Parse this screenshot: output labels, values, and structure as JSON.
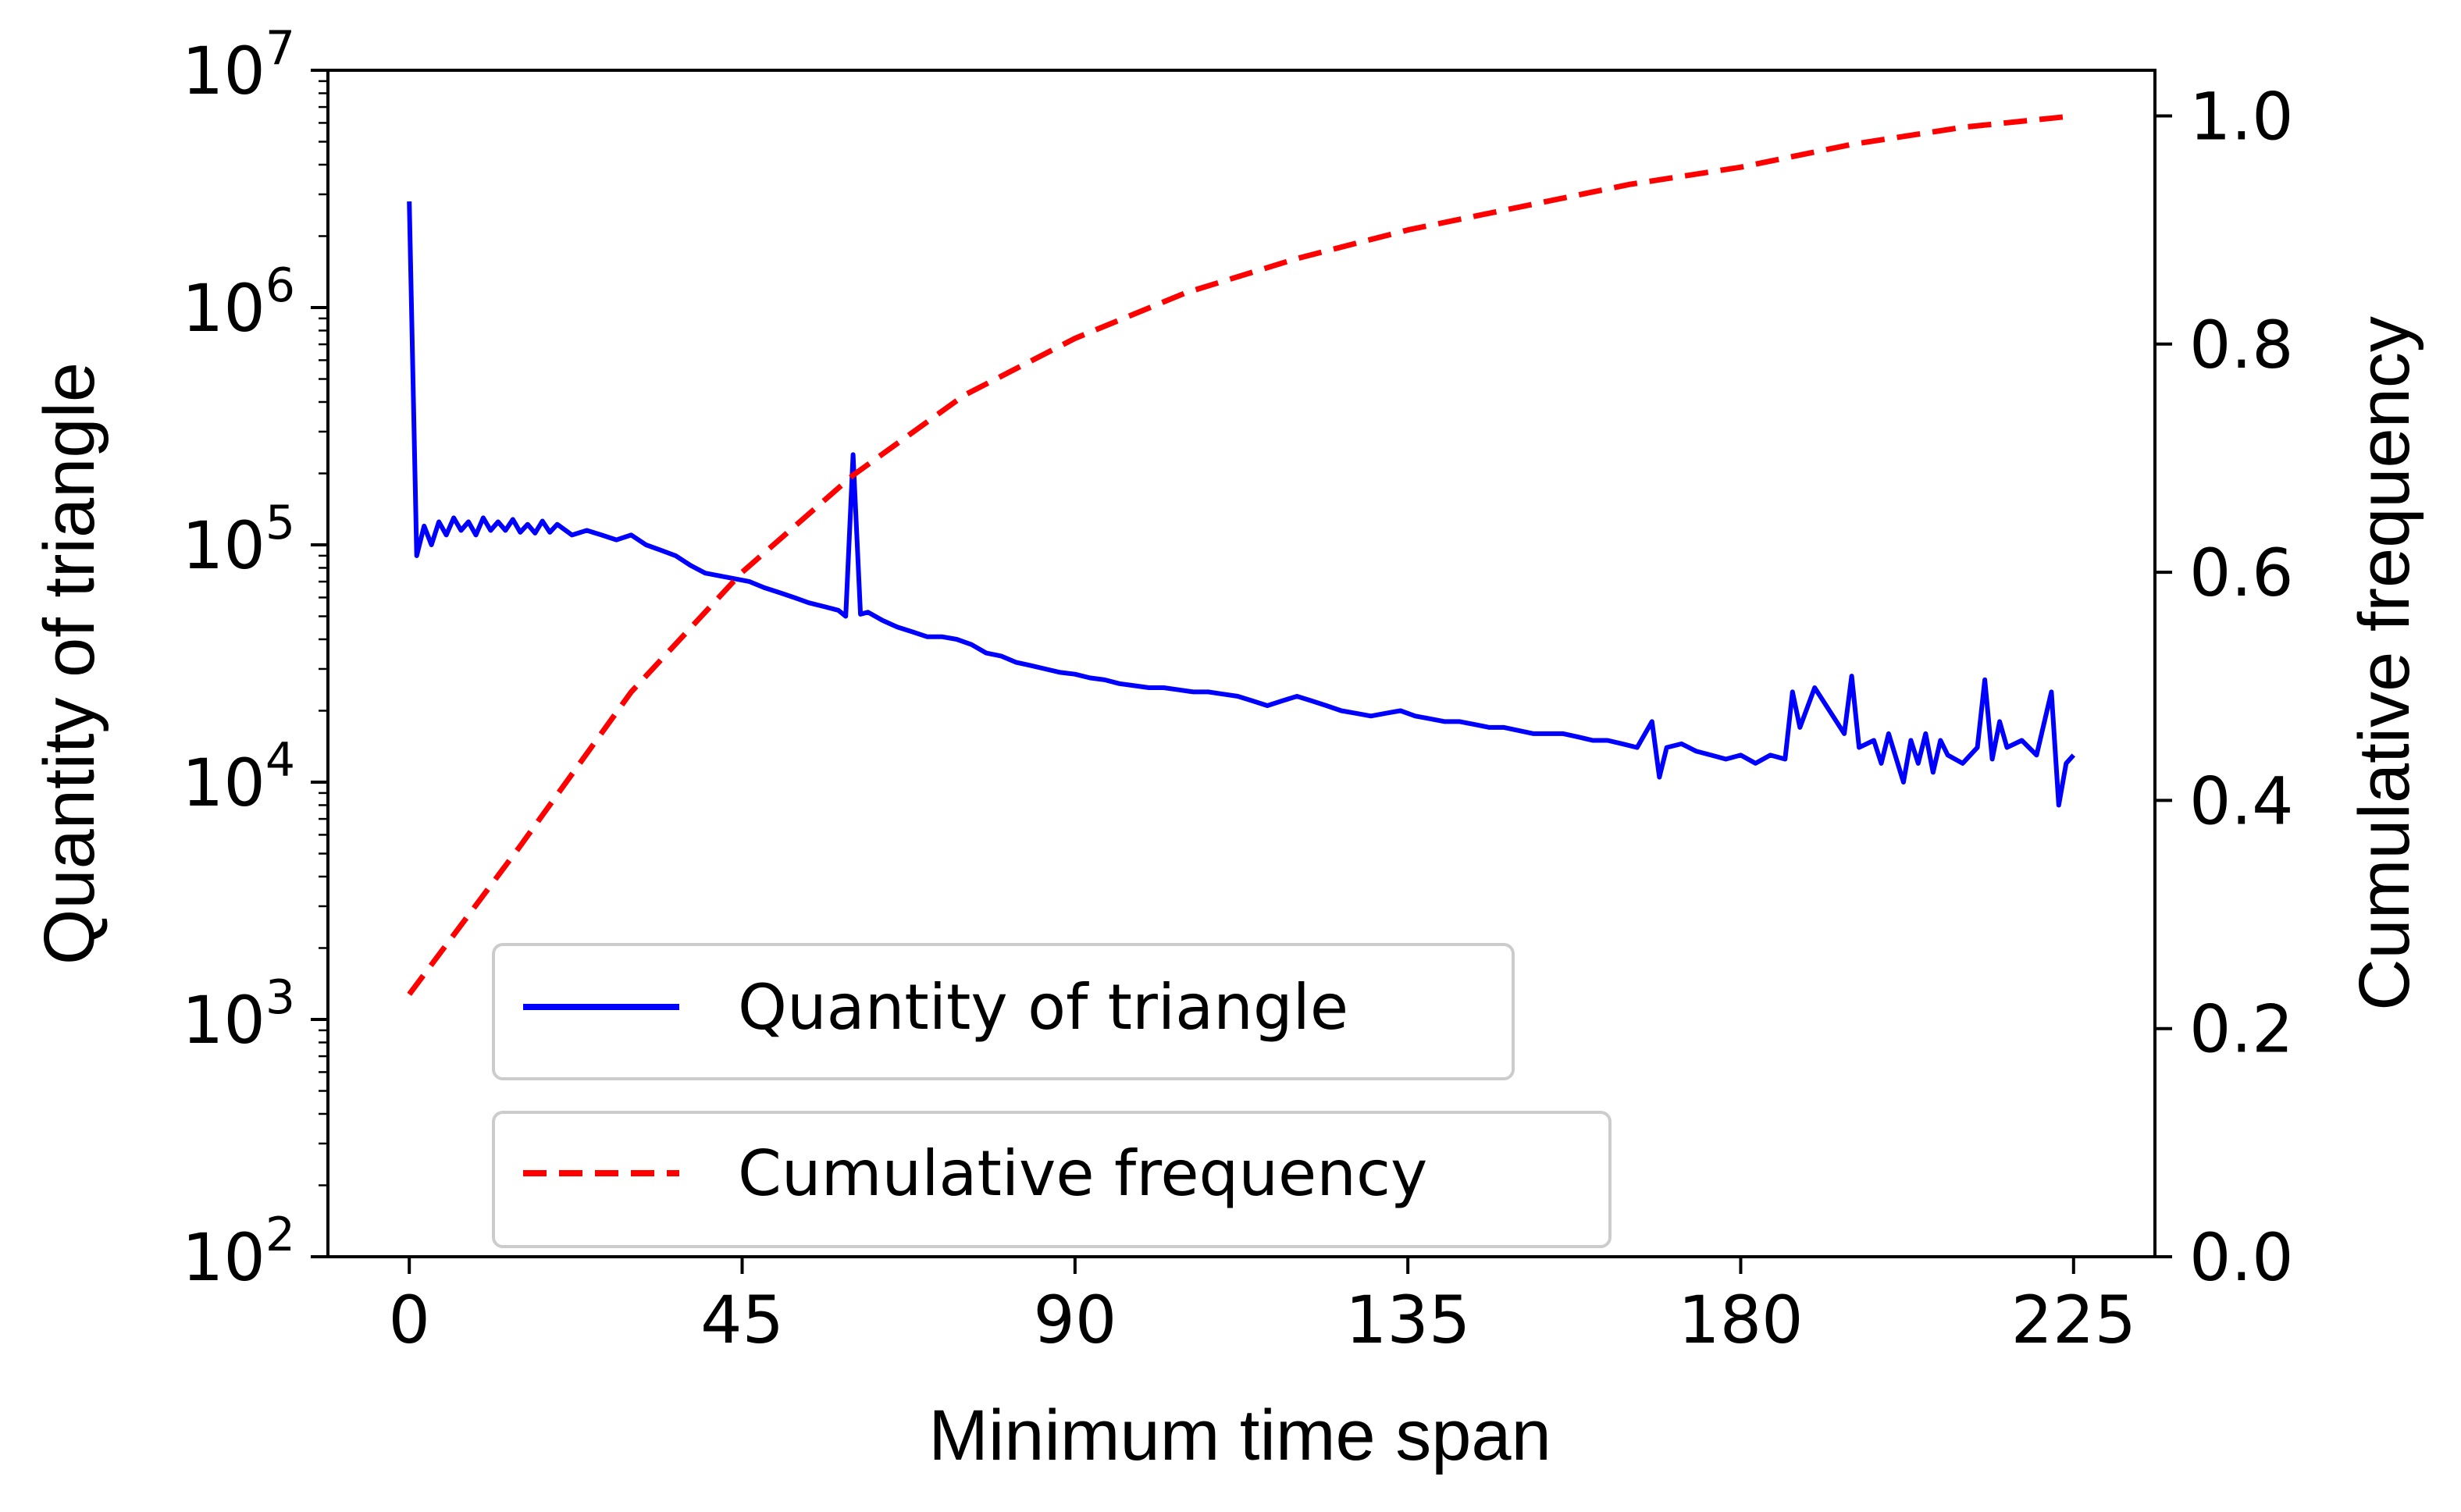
{
  "chart_data": {
    "type": "line",
    "xlabel": "Minimum time span",
    "ylabel_left": "Quantity of triangle",
    "ylabel_right": "Cumulative frequency",
    "xlim": [
      -11,
      236
    ],
    "ylim_left": [
      100,
      10000000
    ],
    "ylim_right": [
      0.0,
      1.04
    ],
    "y_left_scale": "log",
    "x_ticks": [
      "0",
      "45",
      "90",
      "135",
      "180",
      "225"
    ],
    "y_left_ticks": [
      "10^2",
      "10^3",
      "10^4",
      "10^5",
      "10^6",
      "10^7"
    ],
    "y_right_ticks": [
      "0.0",
      "0.2",
      "0.4",
      "0.6",
      "0.8",
      "1.0"
    ],
    "grid": false,
    "legend": {
      "position": "lower-left",
      "entries": [
        {
          "label": "Quantity of triangle",
          "color": "#0000ff",
          "style": "solid"
        },
        {
          "label": "Cumulative frequency",
          "color": "#ff0000",
          "style": "dashed"
        }
      ]
    },
    "series": [
      {
        "name": "Quantity of triangle",
        "axis": "left",
        "color": "#0000ff",
        "x": [
          0,
          1,
          2,
          3,
          4,
          5,
          6,
          7,
          8,
          9,
          10,
          11,
          12,
          13,
          14,
          15,
          16,
          17,
          18,
          19,
          20,
          22,
          24,
          26,
          28,
          30,
          32,
          34,
          36,
          38,
          40,
          42,
          44,
          46,
          48,
          50,
          52,
          54,
          56,
          58,
          59,
          60,
          61,
          62,
          64,
          66,
          68,
          70,
          72,
          74,
          76,
          78,
          80,
          82,
          84,
          86,
          88,
          90,
          92,
          94,
          96,
          98,
          100,
          102,
          104,
          106,
          108,
          110,
          112,
          114,
          116,
          118,
          120,
          122,
          124,
          126,
          128,
          130,
          132,
          134,
          136,
          138,
          140,
          142,
          144,
          146,
          148,
          150,
          152,
          154,
          156,
          158,
          160,
          162,
          164,
          166,
          168,
          169,
          170,
          172,
          174,
          176,
          178,
          180,
          182,
          184,
          186,
          187,
          188,
          190,
          192,
          194,
          195,
          196,
          198,
          199,
          200,
          202,
          203,
          204,
          205,
          206,
          207,
          208,
          210,
          212,
          213,
          214,
          215,
          216,
          218,
          220,
          222,
          223,
          224,
          225
        ],
        "y": [
          2800000,
          90000,
          120000,
          100000,
          125000,
          110000,
          130000,
          115000,
          125000,
          110000,
          130000,
          115000,
          125000,
          115000,
          128000,
          113000,
          122000,
          112000,
          126000,
          113000,
          122000,
          110000,
          115000,
          110000,
          105000,
          110000,
          100000,
          95000,
          90000,
          82000,
          76000,
          74000,
          72000,
          70000,
          66000,
          63000,
          60000,
          57000,
          55000,
          53000,
          50000,
          240000,
          51000,
          52000,
          48000,
          45000,
          43000,
          41000,
          41000,
          40000,
          38000,
          35000,
          34000,
          32000,
          31000,
          30000,
          29000,
          28500,
          27500,
          27000,
          26000,
          25500,
          25000,
          25000,
          24500,
          24000,
          24000,
          23500,
          23000,
          22000,
          21000,
          22000,
          23000,
          22000,
          21000,
          20000,
          19500,
          19000,
          19500,
          20000,
          19000,
          18500,
          18000,
          18000,
          17500,
          17000,
          17000,
          16500,
          16000,
          16000,
          16000,
          15500,
          15000,
          15000,
          14500,
          14000,
          18000,
          10500,
          14000,
          14500,
          13500,
          13000,
          12500,
          13000,
          12000,
          13000,
          12500,
          24000,
          17000,
          25000,
          20000,
          16000,
          28000,
          14000,
          15000,
          12000,
          16000,
          10000,
          15000,
          12000,
          16000,
          11000,
          15000,
          13000,
          12000,
          14000,
          27000,
          12500,
          18000,
          14000,
          15000,
          13000,
          24000,
          8000,
          12000,
          13000
        ]
      },
      {
        "name": "Cumulative frequency",
        "axis": "right",
        "color": "#ff0000",
        "x": [
          0,
          15,
          30,
          45,
          60,
          75,
          90,
          105,
          120,
          135,
          150,
          165,
          180,
          195,
          210,
          225
        ],
        "y": [
          0.23,
          0.36,
          0.495,
          0.6,
          0.685,
          0.755,
          0.805,
          0.845,
          0.875,
          0.9,
          0.92,
          0.94,
          0.955,
          0.975,
          0.99,
          1.0
        ]
      }
    ]
  }
}
